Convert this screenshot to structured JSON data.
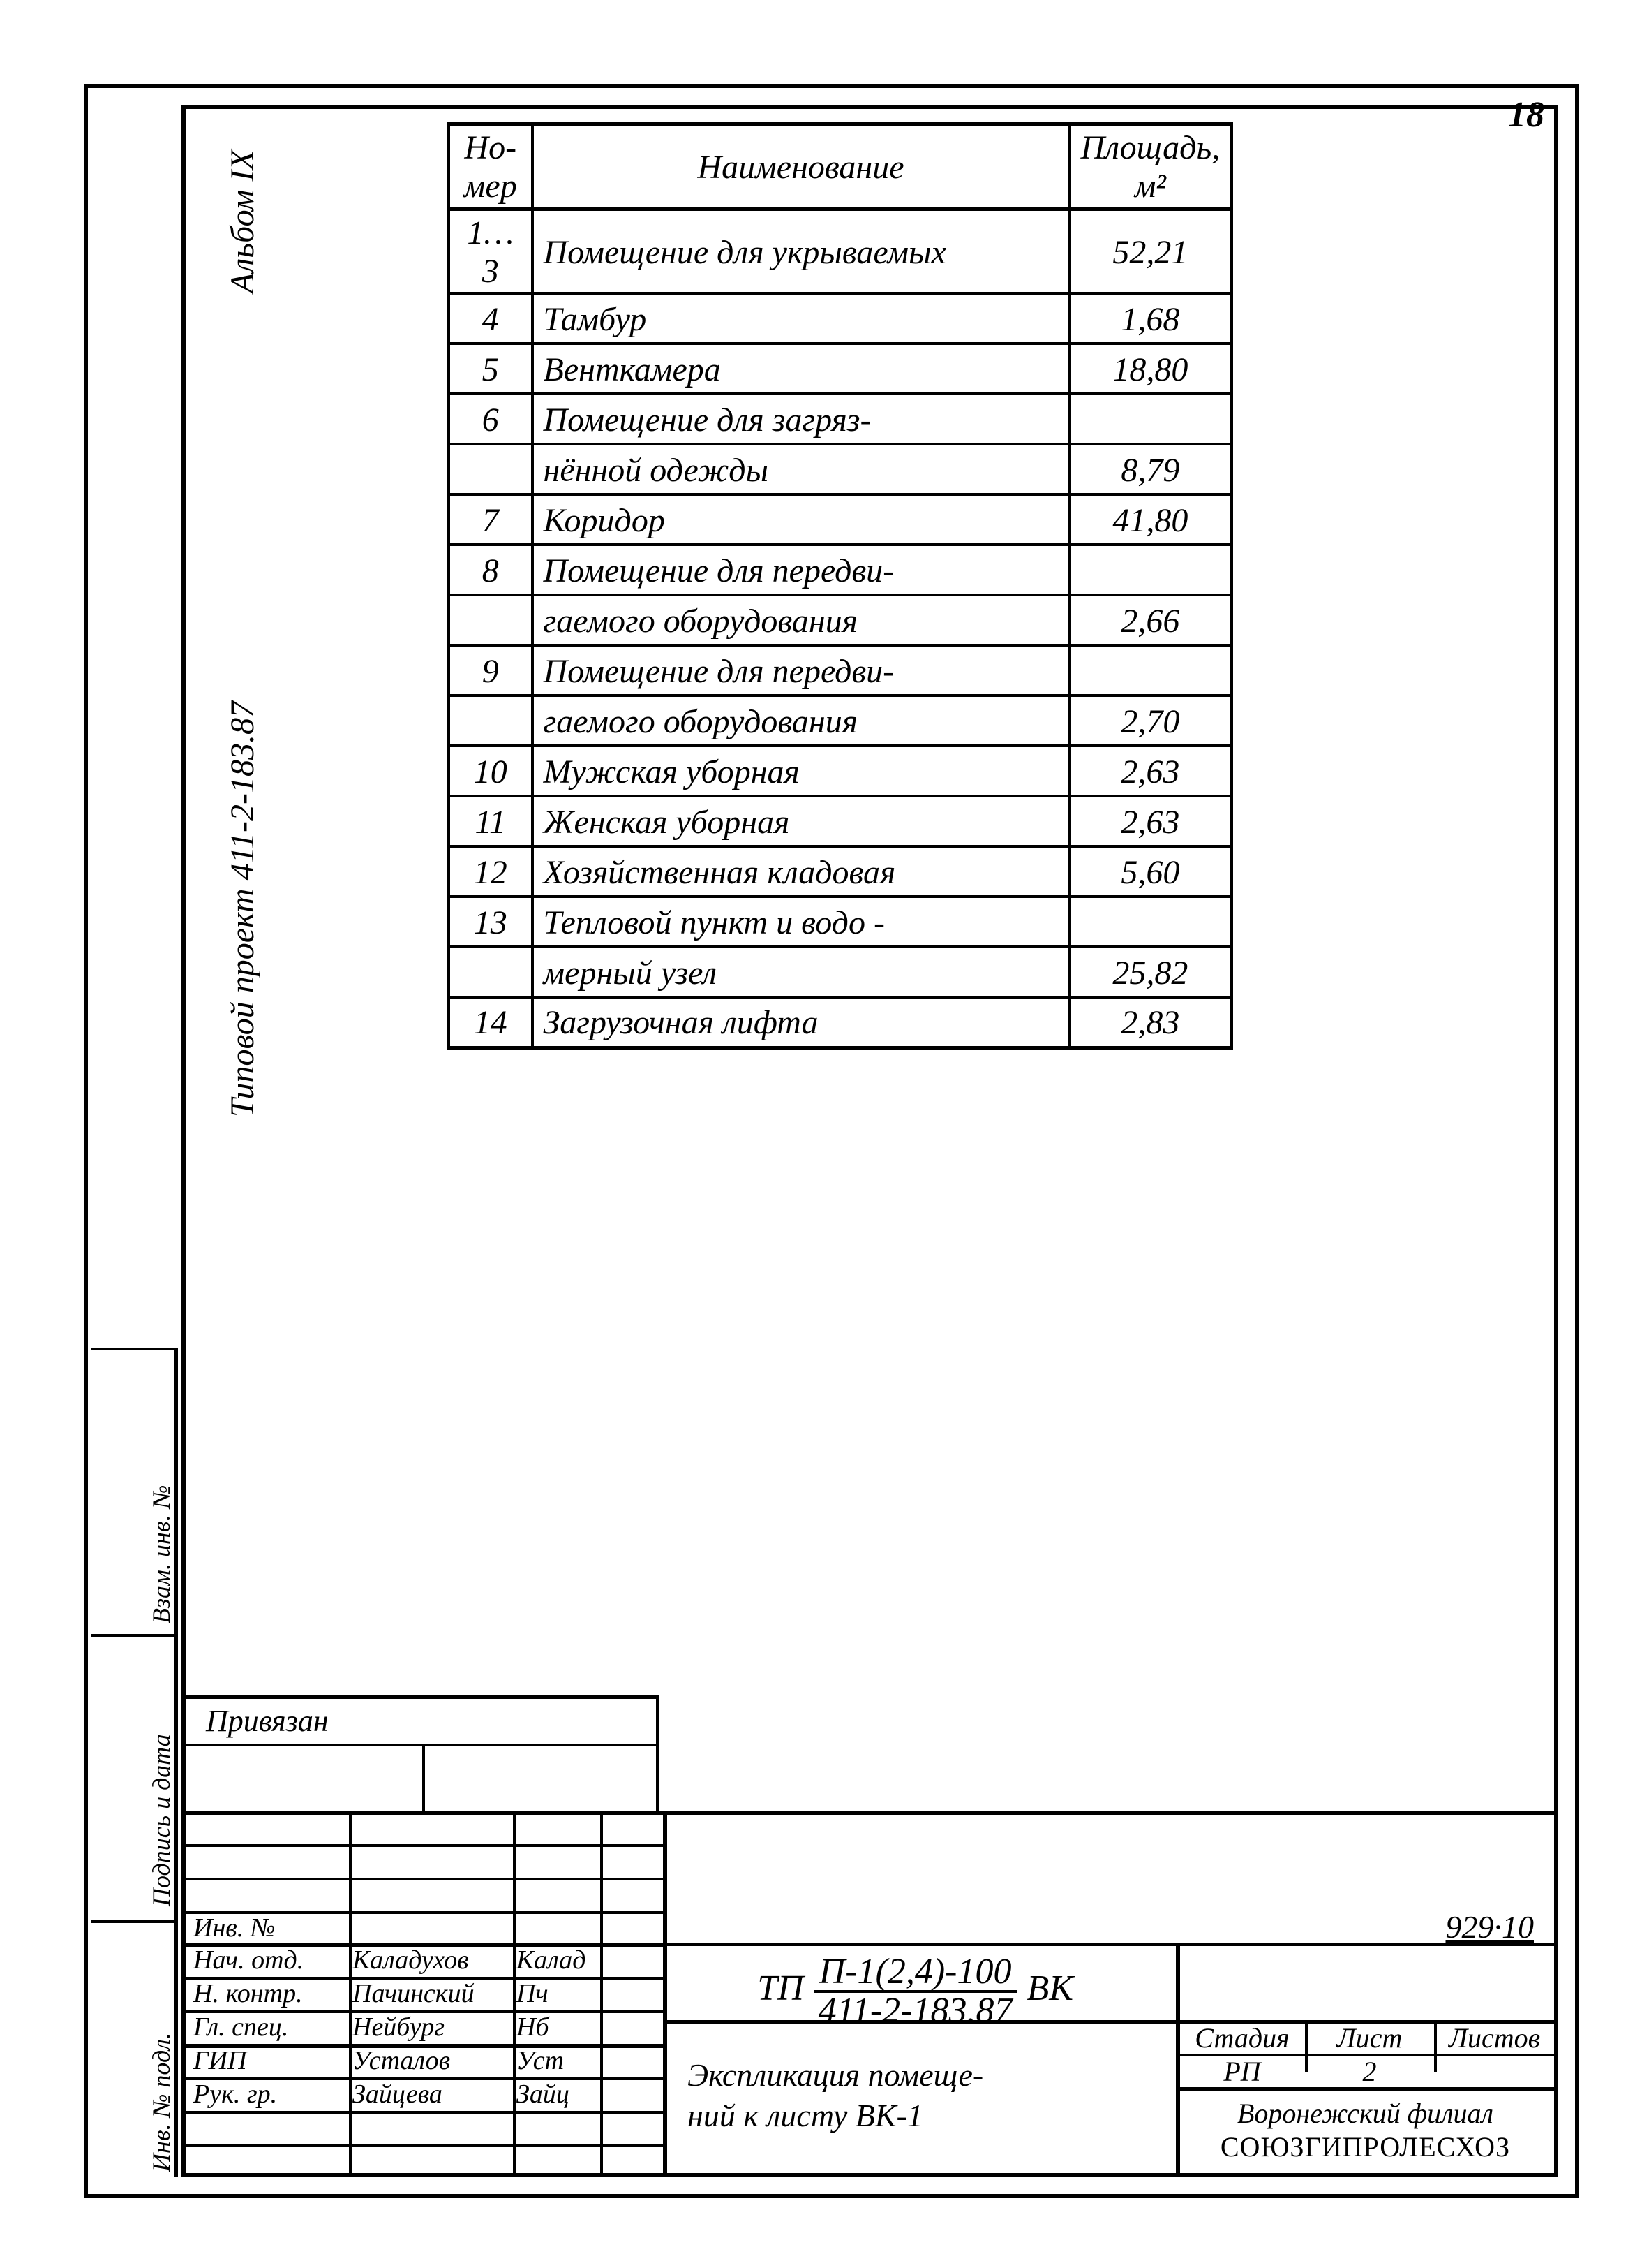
{
  "page_number": "18",
  "sidebar": {
    "project_line": "Типовой проект 411-2-183.87",
    "album_line": "Альбом IX",
    "stamp_cells": [
      "Инв. № подл.",
      "Подпись и дата",
      "Взам. инв. №"
    ]
  },
  "table": {
    "headers": {
      "num": "Но-\nмер",
      "name": "Наименование",
      "area": "Площадь,\nм²"
    },
    "rows": [
      {
        "num": "1…3",
        "name": "Помещение для укрываемых",
        "area": "52,21"
      },
      {
        "num": "4",
        "name": "Тамбур",
        "area": "1,68"
      },
      {
        "num": "5",
        "name": "Венткамера",
        "area": "18,80"
      },
      {
        "num": "6",
        "name": "Помещение для загряз-",
        "area": ""
      },
      {
        "num": "",
        "name": "нённой одежды",
        "area": "8,79"
      },
      {
        "num": "7",
        "name": "Коридор",
        "area": "41,80"
      },
      {
        "num": "8",
        "name": "Помещение для передви-",
        "area": ""
      },
      {
        "num": "",
        "name": "гаемого оборудования",
        "area": "2,66"
      },
      {
        "num": "9",
        "name": "Помещение для передви-",
        "area": ""
      },
      {
        "num": "",
        "name": "гаемого оборудования",
        "area": "2,70"
      },
      {
        "num": "10",
        "name": "Мужская уборная",
        "area": "2,63"
      },
      {
        "num": "11",
        "name": "Женская уборная",
        "area": "2,63"
      },
      {
        "num": "12",
        "name": "Хозяйственная кладовая",
        "area": "5,60"
      },
      {
        "num": "13",
        "name": "Тепловой пункт и водо -",
        "area": ""
      },
      {
        "num": "",
        "name": "мерный узел",
        "area": "25,82"
      },
      {
        "num": "14",
        "name": "Загрузочная лифта",
        "area": "2,83"
      }
    ]
  },
  "privyazan_label": "Привязан",
  "stamp": {
    "code_right": "929·10",
    "code_prefix": "ТП",
    "code_frac_top": "П-1(2,4)-100",
    "code_frac_bot": "411-2-183.87",
    "code_suffix": "ВК",
    "title_line1": "Экспликация помеще-",
    "title_line2": "ний к листу ВК-1",
    "col_labels": {
      "stage": "Стадия",
      "sheet": "Лист",
      "sheets": "Листов"
    },
    "col_values": {
      "stage": "РП",
      "sheet": "2",
      "sheets": ""
    },
    "org_line1": "Воронежский филиал",
    "org_line2": "СОЮЗГИПРОЛЕСХОЗ",
    "roles": [
      {
        "role": "Инв. №",
        "name": "",
        "sig": ""
      },
      {
        "role": "Нач. отд.",
        "name": "Каладухов",
        "sig": "Калад"
      },
      {
        "role": "Н. контр.",
        "name": "Пачинский",
        "sig": "Пч"
      },
      {
        "role": "Гл. спец.",
        "name": "Нейбург",
        "sig": "Нб"
      },
      {
        "role": "ГИП",
        "name": "Усталов",
        "sig": "Уст"
      },
      {
        "role": "Рук. гр.",
        "name": "Зайцева",
        "sig": "Зайц"
      }
    ]
  }
}
